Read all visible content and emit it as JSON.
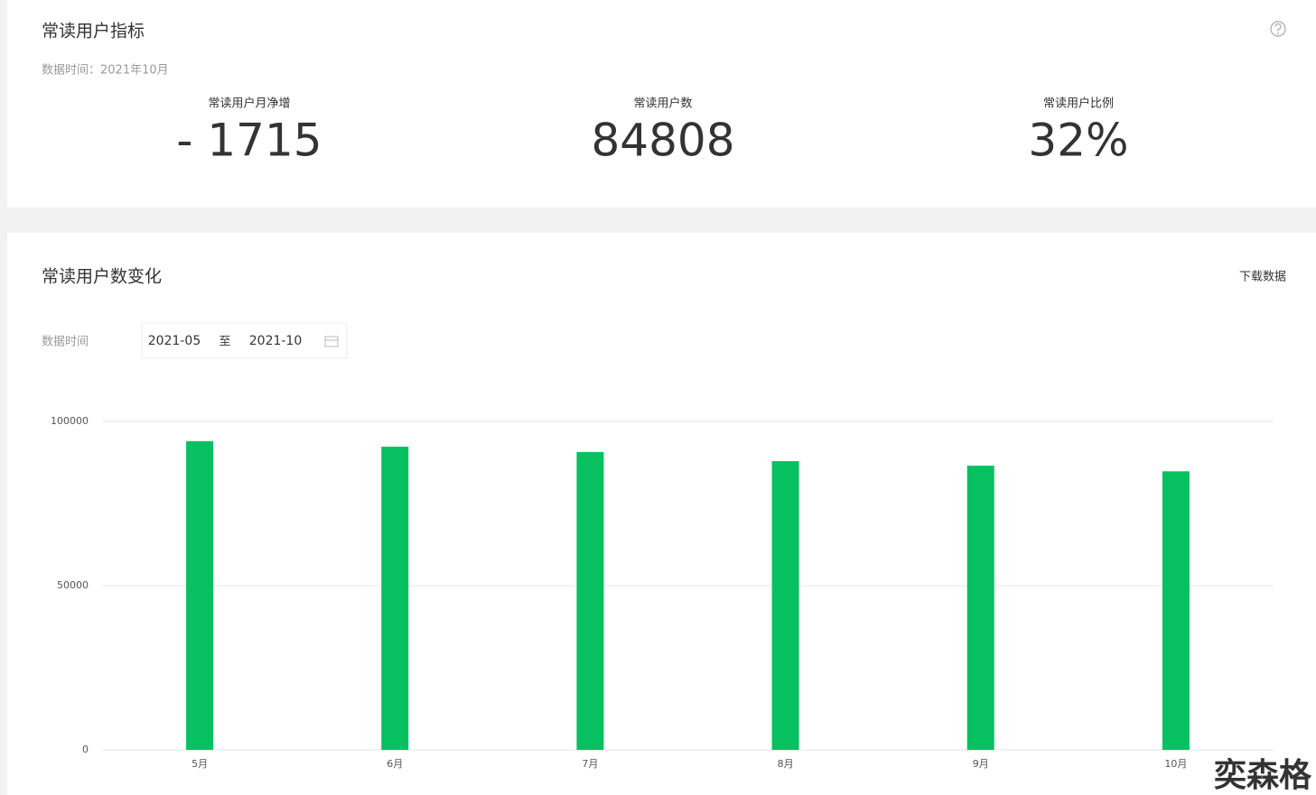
{
  "overview": {
    "title": "常读用户指标",
    "data_time": "数据时间：2021年10月",
    "metrics": [
      {
        "label": "常读用户月净增",
        "value": "- 1715"
      },
      {
        "label": "常读用户数",
        "value": "84808"
      },
      {
        "label": "常读用户比例",
        "value": "32%"
      }
    ]
  },
  "trend": {
    "title": "常读用户数变化",
    "download": "下载数据",
    "date_label": "数据时间",
    "date_start": "2021-05",
    "date_separator": "至",
    "date_end": "2021-10"
  },
  "chart_data": {
    "type": "bar",
    "categories": [
      "5月",
      "6月",
      "7月",
      "8月",
      "9月",
      "10月"
    ],
    "values": [
      94000,
      92300,
      90700,
      87900,
      86523,
      84808
    ],
    "color": "#07c160",
    "ylim": [
      0,
      100000
    ],
    "yticks": [
      0,
      50000,
      100000
    ],
    "grid": true
  },
  "watermark": "奕森格"
}
